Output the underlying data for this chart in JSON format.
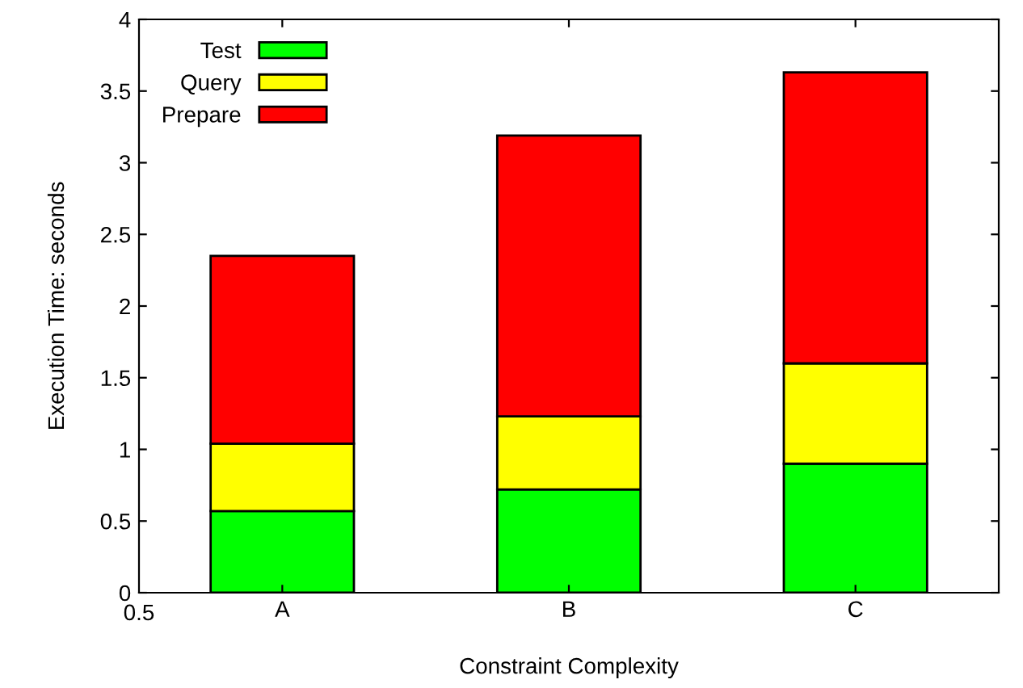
{
  "chart_data": {
    "type": "bar",
    "stacked": true,
    "xlabel": "Constraint Complexity",
    "ylabel": "Execution Time: seconds",
    "categories": [
      "A",
      "B",
      "C"
    ],
    "annotations": [
      "0.5"
    ],
    "series": [
      {
        "name": "Test",
        "color": "#00ff00",
        "values": [
          0.57,
          0.72,
          0.9
        ]
      },
      {
        "name": "Query",
        "color": "#ffff00",
        "values": [
          0.47,
          0.51,
          0.7
        ]
      },
      {
        "name": "Prepare",
        "color": "#ff0000",
        "values": [
          1.31,
          1.96,
          2.03
        ]
      }
    ],
    "ylim": [
      0,
      4
    ],
    "yticks": [
      0,
      0.5,
      1,
      1.5,
      2,
      2.5,
      3,
      3.5,
      4
    ],
    "grid": false,
    "legend": "top left"
  }
}
